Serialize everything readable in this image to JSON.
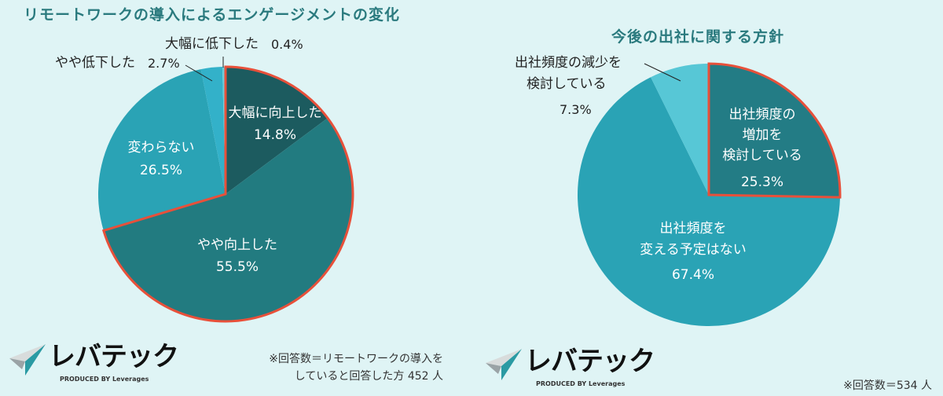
{
  "chart_data": [
    {
      "type": "pie",
      "title": "リモートワークの導入によるエンゲージメントの変化",
      "categories": [
        "大幅に向上した",
        "やや向上した",
        "変わらない",
        "やや低下した",
        "大幅に低下した"
      ],
      "values": [
        14.8,
        55.5,
        26.5,
        2.7,
        0.4
      ],
      "labels": [
        "14.8%",
        "55.5%",
        "26.5%",
        "2.7%",
        "0.4%"
      ],
      "colors": [
        "#1c5b5f",
        "#227b80",
        "#2aa3b5",
        "#33b1c9",
        "#6fcbd8"
      ],
      "highlighted": [
        "大幅に向上した",
        "やや向上した"
      ],
      "highlight_color": "#e8503a",
      "note_lines": [
        "※回答数＝リモートワークの導入を",
        "していると回答した方 452 人"
      ]
    },
    {
      "type": "pie",
      "title": "今後の出社に関する方針",
      "categories": [
        "出社頻度の増加を検討している",
        "出社頻度を変える予定はない",
        "出社頻度の減少を検討している"
      ],
      "category_lines": [
        [
          "出社頻度の",
          "増加を",
          "検討している"
        ],
        [
          "出社頻度を",
          "変える予定はない"
        ],
        [
          "出社頻度の減少を",
          "検討している"
        ]
      ],
      "values": [
        25.3,
        67.4,
        7.3
      ],
      "labels": [
        "25.3%",
        "67.4%",
        "7.3%"
      ],
      "colors": [
        "#237c85",
        "#2aa3b5",
        "#57c7d6"
      ],
      "highlighted": [
        "出社頻度の増加を検討している"
      ],
      "highlight_color": "#e8503a",
      "note_lines": [
        "※回答数＝534 人"
      ]
    }
  ],
  "logo": {
    "name": "レバテック",
    "sub": "PRODUCED BY Leverages",
    "colors": [
      "#2a9aa3",
      "#9aa3a6",
      "#d8dcdc"
    ]
  },
  "background": "#dff4f5",
  "title_color": "#2a7a7e"
}
